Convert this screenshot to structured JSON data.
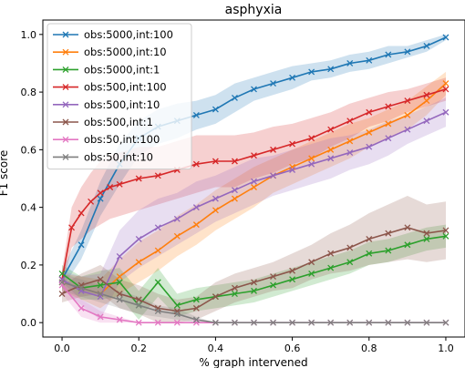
{
  "chart_data": {
    "type": "line",
    "title": "asphyxia",
    "xlabel": "% graph intervened",
    "ylabel": "F1 score",
    "xlim": [
      -0.05,
      1.05
    ],
    "ylim": [
      -0.05,
      1.05
    ],
    "xticks": [
      0.0,
      0.2,
      0.4,
      0.6,
      0.8,
      1.0
    ],
    "xtick_labels": [
      "0.0",
      "0.2",
      "0.4",
      "0.6",
      "0.8",
      "1.0"
    ],
    "yticks": [
      0.0,
      0.2,
      0.4,
      0.6,
      0.8,
      1.0
    ],
    "ytick_labels": [
      "0.0",
      "0.2",
      "0.4",
      "0.6",
      "0.8",
      "1.0"
    ],
    "grid": false,
    "legend_position": "upper-left",
    "marker": "x",
    "band": "shaded ± std",
    "series": [
      {
        "name": "obs:5000,int:100",
        "color": "#1f77b4",
        "x": [
          0,
          0.05,
          0.1,
          0.15,
          0.2,
          0.25,
          0.3,
          0.35,
          0.4,
          0.45,
          0.5,
          0.55,
          0.6,
          0.65,
          0.7,
          0.75,
          0.8,
          0.85,
          0.9,
          0.95,
          1.0
        ],
        "y": [
          0.15,
          0.27,
          0.43,
          0.55,
          0.64,
          0.68,
          0.7,
          0.72,
          0.74,
          0.78,
          0.81,
          0.83,
          0.85,
          0.87,
          0.88,
          0.9,
          0.91,
          0.93,
          0.94,
          0.96,
          0.99
        ],
        "band": [
          0.03,
          0.05,
          0.06,
          0.07,
          0.06,
          0.06,
          0.06,
          0.05,
          0.05,
          0.05,
          0.04,
          0.04,
          0.04,
          0.03,
          0.03,
          0.03,
          0.03,
          0.03,
          0.02,
          0.02,
          0.01
        ]
      },
      {
        "name": "obs:5000,int:10",
        "color": "#ff7f0e",
        "x": [
          0,
          0.05,
          0.1,
          0.15,
          0.2,
          0.25,
          0.3,
          0.35,
          0.4,
          0.45,
          0.5,
          0.55,
          0.6,
          0.65,
          0.7,
          0.75,
          0.8,
          0.85,
          0.9,
          0.95,
          1.0
        ],
        "y": [
          0.14,
          0.12,
          0.1,
          0.16,
          0.21,
          0.25,
          0.3,
          0.34,
          0.39,
          0.43,
          0.47,
          0.51,
          0.54,
          0.57,
          0.6,
          0.63,
          0.66,
          0.69,
          0.72,
          0.77,
          0.83
        ],
        "band": [
          0.03,
          0.04,
          0.05,
          0.06,
          0.07,
          0.07,
          0.07,
          0.07,
          0.07,
          0.07,
          0.07,
          0.06,
          0.06,
          0.06,
          0.06,
          0.06,
          0.05,
          0.05,
          0.05,
          0.05,
          0.04
        ]
      },
      {
        "name": "obs:5000,int:1",
        "color": "#2ca02c",
        "x": [
          0,
          0.05,
          0.1,
          0.15,
          0.2,
          0.25,
          0.3,
          0.35,
          0.4,
          0.45,
          0.5,
          0.55,
          0.6,
          0.65,
          0.7,
          0.75,
          0.8,
          0.85,
          0.9,
          0.95,
          1.0
        ],
        "y": [
          0.17,
          0.12,
          0.13,
          0.14,
          0.06,
          0.14,
          0.06,
          0.08,
          0.09,
          0.1,
          0.11,
          0.13,
          0.15,
          0.17,
          0.19,
          0.21,
          0.24,
          0.25,
          0.27,
          0.29,
          0.3
        ],
        "band": [
          0.03,
          0.04,
          0.05,
          0.05,
          0.05,
          0.05,
          0.04,
          0.04,
          0.04,
          0.04,
          0.04,
          0.04,
          0.04,
          0.04,
          0.04,
          0.04,
          0.04,
          0.04,
          0.04,
          0.04,
          0.04
        ]
      },
      {
        "name": "obs:500,int:100",
        "color": "#d62728",
        "x": [
          0,
          0.025,
          0.05,
          0.075,
          0.1,
          0.125,
          0.15,
          0.2,
          0.25,
          0.3,
          0.35,
          0.4,
          0.45,
          0.5,
          0.55,
          0.6,
          0.65,
          0.7,
          0.75,
          0.8,
          0.85,
          0.9,
          0.95,
          1.0
        ],
        "y": [
          0.15,
          0.33,
          0.38,
          0.42,
          0.45,
          0.47,
          0.48,
          0.5,
          0.51,
          0.53,
          0.55,
          0.56,
          0.56,
          0.58,
          0.6,
          0.62,
          0.64,
          0.67,
          0.7,
          0.73,
          0.75,
          0.77,
          0.79,
          0.81
        ],
        "band": [
          0.03,
          0.07,
          0.09,
          0.1,
          0.11,
          0.11,
          0.11,
          0.11,
          0.1,
          0.1,
          0.1,
          0.09,
          0.09,
          0.08,
          0.08,
          0.07,
          0.07,
          0.06,
          0.06,
          0.05,
          0.05,
          0.04,
          0.04,
          0.04
        ]
      },
      {
        "name": "obs:500,int:10",
        "color": "#9467bd",
        "x": [
          0,
          0.05,
          0.1,
          0.15,
          0.2,
          0.25,
          0.3,
          0.35,
          0.4,
          0.45,
          0.5,
          0.55,
          0.6,
          0.65,
          0.7,
          0.75,
          0.8,
          0.85,
          0.9,
          0.95,
          1.0
        ],
        "y": [
          0.15,
          0.11,
          0.09,
          0.23,
          0.29,
          0.33,
          0.36,
          0.4,
          0.43,
          0.46,
          0.49,
          0.51,
          0.53,
          0.55,
          0.57,
          0.59,
          0.61,
          0.64,
          0.67,
          0.7,
          0.73
        ],
        "band": [
          0.03,
          0.05,
          0.08,
          0.09,
          0.1,
          0.1,
          0.09,
          0.09,
          0.08,
          0.08,
          0.08,
          0.07,
          0.07,
          0.07,
          0.07,
          0.06,
          0.06,
          0.06,
          0.05,
          0.05,
          0.05
        ]
      },
      {
        "name": "obs:500,int:1",
        "color": "#8c564b",
        "x": [
          0,
          0.05,
          0.1,
          0.15,
          0.2,
          0.25,
          0.3,
          0.35,
          0.4,
          0.45,
          0.5,
          0.55,
          0.6,
          0.65,
          0.7,
          0.75,
          0.8,
          0.85,
          0.9,
          0.95,
          1.0
        ],
        "y": [
          0.1,
          0.13,
          0.15,
          0.1,
          0.08,
          0.05,
          0.04,
          0.05,
          0.09,
          0.12,
          0.14,
          0.16,
          0.18,
          0.21,
          0.24,
          0.26,
          0.29,
          0.31,
          0.33,
          0.31,
          0.32
        ],
        "band": [
          0.03,
          0.04,
          0.05,
          0.05,
          0.05,
          0.05,
          0.04,
          0.04,
          0.05,
          0.05,
          0.05,
          0.05,
          0.06,
          0.06,
          0.07,
          0.08,
          0.09,
          0.1,
          0.11,
          0.1,
          0.1
        ]
      },
      {
        "name": "obs:50,int:100",
        "color": "#e377c2",
        "x": [
          0,
          0.05,
          0.1,
          0.15,
          0.2,
          0.25,
          0.3,
          0.35,
          0.4,
          0.45,
          0.5,
          0.55,
          0.6,
          0.65,
          0.7,
          0.75,
          0.8,
          0.85,
          0.9,
          0.95,
          1.0
        ],
        "y": [
          0.13,
          0.05,
          0.02,
          0.01,
          0.0,
          0.0,
          0.0,
          0.0,
          0.0,
          0.0,
          0.0,
          0.0,
          0.0,
          0.0,
          0.0,
          0.0,
          0.0,
          0.0,
          0.0,
          0.0,
          0.0
        ],
        "band": [
          0.03,
          0.03,
          0.02,
          0.01,
          0.0,
          0.0,
          0.0,
          0.0,
          0.0,
          0.0,
          0.0,
          0.0,
          0.0,
          0.0,
          0.0,
          0.0,
          0.0,
          0.0,
          0.0,
          0.0,
          0.0
        ]
      },
      {
        "name": "obs:50,int:10",
        "color": "#7f7f7f",
        "x": [
          0,
          0.05,
          0.1,
          0.15,
          0.2,
          0.25,
          0.3,
          0.35,
          0.4,
          0.45,
          0.5,
          0.55,
          0.6,
          0.65,
          0.7,
          0.75,
          0.8,
          0.85,
          0.9,
          0.95,
          1.0
        ],
        "y": [
          0.14,
          0.12,
          0.1,
          0.08,
          0.06,
          0.04,
          0.03,
          0.01,
          0.0,
          0.0,
          0.0,
          0.0,
          0.0,
          0.0,
          0.0,
          0.0,
          0.0,
          0.0,
          0.0,
          0.0,
          0.0
        ],
        "band": [
          0.03,
          0.03,
          0.03,
          0.03,
          0.03,
          0.02,
          0.02,
          0.01,
          0.0,
          0.0,
          0.0,
          0.0,
          0.0,
          0.0,
          0.0,
          0.0,
          0.0,
          0.0,
          0.0,
          0.0,
          0.0
        ]
      }
    ]
  }
}
